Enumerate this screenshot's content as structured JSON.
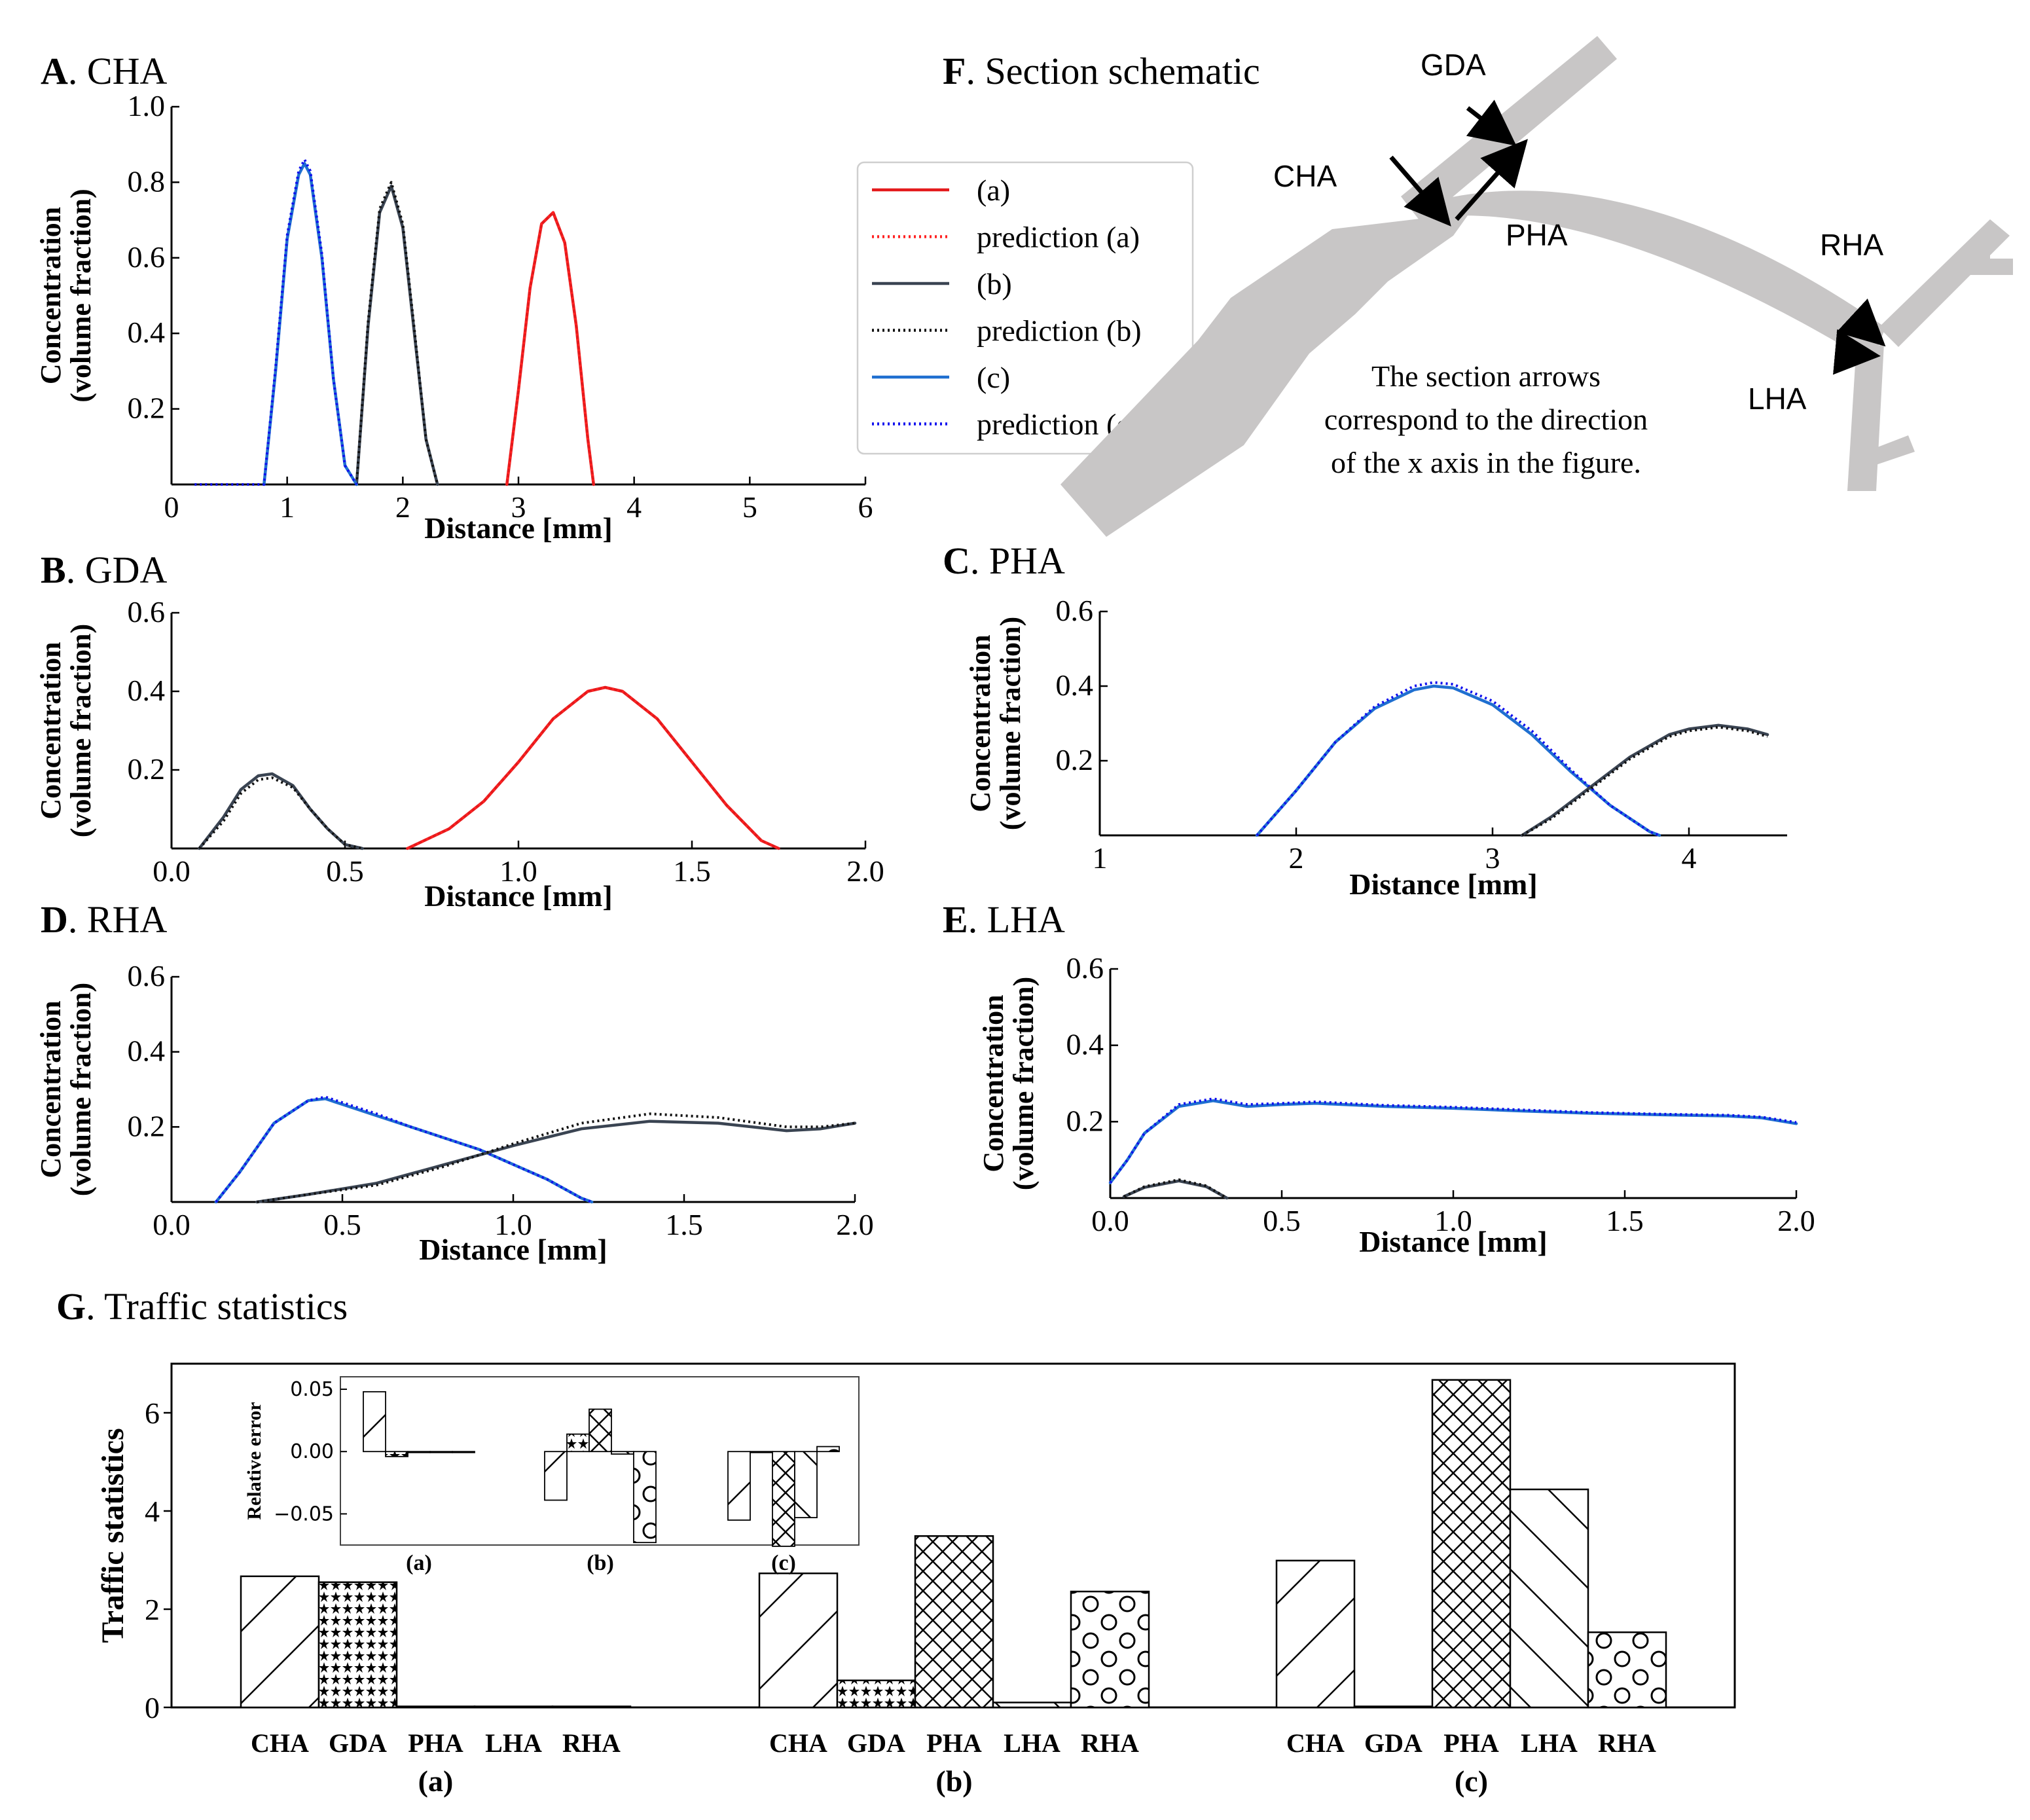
{
  "colors": {
    "a": "#e41a1c",
    "b": "#3a4452",
    "c": "#1f6fd0",
    "pred_a": "#ff2222",
    "pred_b": "#111111",
    "pred_c": "#1010ee",
    "vessel": "#c8c6c6"
  },
  "legend": {
    "entries": [
      {
        "label": "(a)",
        "style": "solid",
        "color_key": "a"
      },
      {
        "label": "prediction (a)",
        "style": "dotted",
        "color_key": "pred_a"
      },
      {
        "label": "(b)",
        "style": "solid",
        "color_key": "b"
      },
      {
        "label": "prediction (b)",
        "style": "dotted",
        "color_key": "pred_b"
      },
      {
        "label": "(c)",
        "style": "solid",
        "color_key": "c"
      },
      {
        "label": "prediction (c)",
        "style": "dotted",
        "color_key": "pred_c"
      }
    ]
  },
  "schematic": {
    "letter": "F",
    "title": ". Section schematic",
    "labels": [
      "GDA",
      "CHA",
      "PHA",
      "RHA",
      "LHA"
    ],
    "note": [
      "The section arrows",
      "correspond to the direction",
      "of the x axis in the figure."
    ]
  },
  "chart_data": [
    {
      "id": "A",
      "letter": "A",
      "title": ". CHA",
      "type": "line",
      "xlabel": "Distance [mm]",
      "ylabel": [
        "Concentration",
        "(volume fraction)"
      ],
      "xlim": [
        0,
        6
      ],
      "ylim": [
        0,
        1.0
      ],
      "xticks": [
        0,
        1,
        2,
        3,
        4,
        5,
        6
      ],
      "xtick_labels": [
        "0",
        "1",
        "2",
        "3",
        "4",
        "5",
        "6"
      ],
      "yticks": [
        0.2,
        0.4,
        0.6,
        0.8,
        1.0
      ],
      "ytick_labels": [
        "0.2",
        "0.4",
        "0.6",
        "0.8",
        "1.0"
      ],
      "series": [
        {
          "key": "a",
          "x": [
            2.9,
            3.0,
            3.1,
            3.2,
            3.3,
            3.4,
            3.5,
            3.6,
            3.65
          ],
          "y": [
            0,
            0.25,
            0.52,
            0.69,
            0.72,
            0.64,
            0.42,
            0.12,
            0
          ]
        },
        {
          "key": "pred_a",
          "x": [
            2.9,
            3.0,
            3.1,
            3.2,
            3.3,
            3.4,
            3.5,
            3.6,
            3.65
          ],
          "y": [
            0,
            0.25,
            0.52,
            0.69,
            0.72,
            0.64,
            0.42,
            0.12,
            0
          ]
        },
        {
          "key": "b",
          "x": [
            1.6,
            1.7,
            1.8,
            1.9,
            2.0,
            2.1,
            2.2,
            2.3
          ],
          "y": [
            0,
            0.42,
            0.72,
            0.79,
            0.68,
            0.4,
            0.12,
            0
          ]
        },
        {
          "key": "pred_b",
          "x": [
            1.6,
            1.7,
            1.8,
            1.9,
            2.0,
            2.1,
            2.2,
            2.3
          ],
          "y": [
            0,
            0.43,
            0.73,
            0.8,
            0.69,
            0.41,
            0.12,
            0
          ]
        },
        {
          "key": "c",
          "x": [
            0.8,
            0.9,
            1.0,
            1.1,
            1.15,
            1.2,
            1.3,
            1.4,
            1.5,
            1.6
          ],
          "y": [
            0,
            0.3,
            0.65,
            0.82,
            0.85,
            0.82,
            0.6,
            0.28,
            0.05,
            0
          ]
        },
        {
          "key": "pred_c",
          "x": [
            0.2,
            0.25,
            0.8,
            0.9,
            1.0,
            1.1,
            1.15,
            1.2,
            1.3,
            1.4,
            1.5,
            1.6
          ],
          "y": [
            0,
            0,
            0,
            0.31,
            0.66,
            0.83,
            0.86,
            0.83,
            0.61,
            0.28,
            0.05,
            0
          ]
        }
      ]
    },
    {
      "id": "B",
      "letter": "B",
      "title": ". GDA",
      "type": "line",
      "xlabel": "Distance [mm]",
      "ylabel": [
        "Concentration",
        "(volume fraction)"
      ],
      "xlim": [
        0,
        2.0
      ],
      "ylim": [
        0,
        0.6
      ],
      "xticks": [
        0,
        0.5,
        1.0,
        1.5,
        2.0
      ],
      "xtick_labels": [
        "0.0",
        "0.5",
        "1.0",
        "1.5",
        "2.0"
      ],
      "yticks": [
        0.2,
        0.4,
        0.6
      ],
      "ytick_labels": [
        "0.2",
        "0.4",
        "0.6"
      ],
      "series": [
        {
          "key": "a",
          "x": [
            0.68,
            0.8,
            0.9,
            1.0,
            1.1,
            1.2,
            1.25,
            1.3,
            1.4,
            1.5,
            1.6,
            1.7,
            1.75
          ],
          "y": [
            0,
            0.05,
            0.12,
            0.22,
            0.33,
            0.4,
            0.41,
            0.4,
            0.33,
            0.22,
            0.11,
            0.02,
            0
          ]
        },
        {
          "key": "pred_a",
          "x": [
            0.68,
            0.8,
            0.9,
            1.0,
            1.1,
            1.2,
            1.25,
            1.3,
            1.4,
            1.5,
            1.6,
            1.7,
            1.75
          ],
          "y": [
            0,
            0.05,
            0.12,
            0.22,
            0.33,
            0.4,
            0.41,
            0.4,
            0.33,
            0.22,
            0.11,
            0.02,
            0
          ]
        },
        {
          "key": "b",
          "x": [
            0.08,
            0.15,
            0.2,
            0.25,
            0.29,
            0.35,
            0.4,
            0.45,
            0.5,
            0.55
          ],
          "y": [
            0,
            0.08,
            0.15,
            0.185,
            0.19,
            0.16,
            0.1,
            0.05,
            0.01,
            0
          ]
        },
        {
          "key": "pred_b",
          "x": [
            0.08,
            0.15,
            0.2,
            0.25,
            0.29,
            0.35,
            0.4,
            0.45,
            0.5,
            0.55
          ],
          "y": [
            0,
            0.07,
            0.14,
            0.175,
            0.18,
            0.155,
            0.1,
            0.05,
            0.01,
            0
          ]
        }
      ]
    },
    {
      "id": "C",
      "letter": "C",
      "title": ". PHA",
      "type": "line",
      "xlabel": "Distance [mm]",
      "ylabel": [
        "Concentration",
        "(volume fraction)"
      ],
      "xlim": [
        1,
        4.5
      ],
      "ylim": [
        0,
        0.6
      ],
      "xticks": [
        1,
        2,
        3,
        4
      ],
      "xtick_labels": [
        "1",
        "2",
        "3",
        "4"
      ],
      "yticks": [
        0.2,
        0.4,
        0.6
      ],
      "ytick_labels": [
        "0.2",
        "0.4",
        "0.6"
      ],
      "series": [
        {
          "key": "c",
          "x": [
            1.8,
            2.0,
            2.2,
            2.4,
            2.6,
            2.7,
            2.8,
            3.0,
            3.2,
            3.4,
            3.6,
            3.8,
            3.85
          ],
          "y": [
            0,
            0.12,
            0.25,
            0.34,
            0.39,
            0.4,
            0.395,
            0.35,
            0.27,
            0.17,
            0.08,
            0.01,
            0
          ]
        },
        {
          "key": "pred_c",
          "x": [
            1.8,
            2.0,
            2.2,
            2.4,
            2.6,
            2.7,
            2.8,
            3.0,
            3.2,
            3.4,
            3.6,
            3.8,
            3.85
          ],
          "y": [
            0,
            0.12,
            0.25,
            0.345,
            0.4,
            0.41,
            0.405,
            0.36,
            0.28,
            0.175,
            0.08,
            0.01,
            0
          ]
        },
        {
          "key": "b",
          "x": [
            3.15,
            3.3,
            3.5,
            3.7,
            3.9,
            4.0,
            4.15,
            4.3,
            4.4
          ],
          "y": [
            0,
            0.05,
            0.13,
            0.21,
            0.27,
            0.285,
            0.295,
            0.285,
            0.27
          ]
        },
        {
          "key": "pred_b",
          "x": [
            3.15,
            3.3,
            3.5,
            3.7,
            3.9,
            4.0,
            4.15,
            4.3,
            4.4
          ],
          "y": [
            0,
            0.045,
            0.125,
            0.205,
            0.265,
            0.28,
            0.29,
            0.28,
            0.265
          ]
        }
      ]
    },
    {
      "id": "D",
      "letter": "D",
      "title": ". RHA",
      "type": "line",
      "xlabel": "Distance [mm]",
      "ylabel": [
        "Concentration",
        "(volume fraction)"
      ],
      "xlim": [
        0,
        2.0
      ],
      "ylim": [
        0,
        0.6
      ],
      "xticks": [
        0,
        0.5,
        1.0,
        1.5,
        2.0
      ],
      "xtick_labels": [
        "0.0",
        "0.5",
        "1.0",
        "1.5",
        "2.0"
      ],
      "yticks": [
        0.2,
        0.4,
        0.6
      ],
      "ytick_labels": [
        "0.2",
        "0.4",
        "0.6"
      ],
      "series": [
        {
          "key": "c",
          "x": [
            0.13,
            0.2,
            0.3,
            0.4,
            0.45,
            0.5,
            0.6,
            0.7,
            0.8,
            0.9,
            1.0,
            1.1,
            1.2,
            1.23
          ],
          "y": [
            0,
            0.08,
            0.21,
            0.27,
            0.275,
            0.26,
            0.23,
            0.2,
            0.17,
            0.14,
            0.1,
            0.06,
            0.01,
            0
          ]
        },
        {
          "key": "pred_c",
          "x": [
            0.13,
            0.2,
            0.3,
            0.4,
            0.45,
            0.5,
            0.6,
            0.7,
            0.8,
            0.9,
            1.0,
            1.1,
            1.2,
            1.23
          ],
          "y": [
            0,
            0.08,
            0.21,
            0.27,
            0.28,
            0.265,
            0.235,
            0.2,
            0.17,
            0.14,
            0.1,
            0.06,
            0.01,
            0
          ]
        },
        {
          "key": "b",
          "x": [
            0.25,
            0.4,
            0.6,
            0.8,
            1.0,
            1.2,
            1.4,
            1.6,
            1.8,
            1.9,
            2.0
          ],
          "y": [
            0,
            0.02,
            0.05,
            0.1,
            0.15,
            0.195,
            0.215,
            0.21,
            0.19,
            0.195,
            0.21
          ]
        },
        {
          "key": "pred_b",
          "x": [
            0.25,
            0.4,
            0.6,
            0.8,
            1.0,
            1.2,
            1.4,
            1.6,
            1.8,
            1.9,
            2.0
          ],
          "y": [
            0,
            0.02,
            0.045,
            0.095,
            0.155,
            0.21,
            0.235,
            0.225,
            0.2,
            0.2,
            0.21
          ]
        }
      ]
    },
    {
      "id": "E",
      "letter": "E",
      "title": ". LHA",
      "type": "line",
      "xlabel": "Distance [mm]",
      "ylabel": [
        "Concentration",
        "(volume fraction)"
      ],
      "xlim": [
        0,
        2.0
      ],
      "ylim": [
        0,
        0.6
      ],
      "xticks": [
        0,
        0.5,
        1.0,
        1.5,
        2.0
      ],
      "xtick_labels": [
        "0.0",
        "0.5",
        "1.0",
        "1.5",
        "2.0"
      ],
      "yticks": [
        0.2,
        0.4,
        0.6
      ],
      "ytick_labels": [
        "0.2",
        "0.4",
        "0.6"
      ],
      "series": [
        {
          "key": "c",
          "x": [
            0,
            0.05,
            0.1,
            0.2,
            0.3,
            0.4,
            0.5,
            0.6,
            0.8,
            1.0,
            1.2,
            1.4,
            1.6,
            1.8,
            1.9,
            2.0
          ],
          "y": [
            0.04,
            0.1,
            0.17,
            0.24,
            0.255,
            0.24,
            0.245,
            0.248,
            0.24,
            0.235,
            0.228,
            0.222,
            0.218,
            0.215,
            0.21,
            0.195
          ]
        },
        {
          "key": "pred_c",
          "x": [
            0,
            0.05,
            0.1,
            0.2,
            0.3,
            0.4,
            0.5,
            0.6,
            0.8,
            1.0,
            1.2,
            1.4,
            1.6,
            1.8,
            1.9,
            2.0
          ],
          "y": [
            0.04,
            0.1,
            0.17,
            0.245,
            0.26,
            0.245,
            0.248,
            0.252,
            0.243,
            0.238,
            0.231,
            0.224,
            0.22,
            0.217,
            0.212,
            0.198
          ]
        },
        {
          "key": "b",
          "x": [
            0.04,
            0.1,
            0.2,
            0.28,
            0.34
          ],
          "y": [
            0.004,
            0.028,
            0.045,
            0.03,
            0
          ]
        },
        {
          "key": "pred_b",
          "x": [
            0.04,
            0.1,
            0.2,
            0.28,
            0.34
          ],
          "y": [
            0.004,
            0.03,
            0.048,
            0.032,
            0
          ]
        }
      ]
    },
    {
      "id": "G",
      "letter": "G",
      "title": ". Traffic statistics",
      "type": "bar",
      "ylabel": "Traffic statistics",
      "ylim": [
        0,
        7
      ],
      "yticks": [
        0,
        2,
        4,
        6
      ],
      "ytick_labels": [
        "0",
        "2",
        "4",
        "6"
      ],
      "categories": [
        "CHA",
        "GDA",
        "PHA",
        "LHA",
        "RHA"
      ],
      "patterns": [
        "diag",
        "stars",
        "cross",
        "back",
        "circles"
      ],
      "groups": [
        {
          "label": "(a)",
          "values": [
            2.67,
            2.55,
            0.02,
            0.02,
            0.02
          ]
        },
        {
          "label": "(b)",
          "values": [
            2.73,
            0.55,
            3.49,
            0.1,
            2.36
          ]
        },
        {
          "label": "(c)",
          "values": [
            2.99,
            0.02,
            6.67,
            4.44,
            1.53
          ]
        }
      ]
    },
    {
      "id": "G-inset",
      "type": "bar",
      "ylabel": "Relative error",
      "ylim": [
        -0.075,
        0.06
      ],
      "yticks": [
        0.05,
        0.0,
        -0.05
      ],
      "ytick_labels": [
        "0.05",
        "0.00",
        "−0.05"
      ],
      "categories": [
        "CHA",
        "GDA",
        "PHA",
        "LHA",
        "RHA"
      ],
      "patterns": [
        "diag",
        "stars",
        "cross",
        "back",
        "circles"
      ],
      "groups": [
        {
          "label": "(a)",
          "values": [
            0.048,
            -0.004,
            0.0,
            0.0,
            0.0
          ]
        },
        {
          "label": "(b)",
          "values": [
            -0.039,
            0.014,
            0.034,
            -0.002,
            -0.073
          ]
        },
        {
          "label": "(c)",
          "values": [
            -0.055,
            0.0,
            -0.076,
            -0.053,
            0.004
          ]
        }
      ]
    }
  ]
}
